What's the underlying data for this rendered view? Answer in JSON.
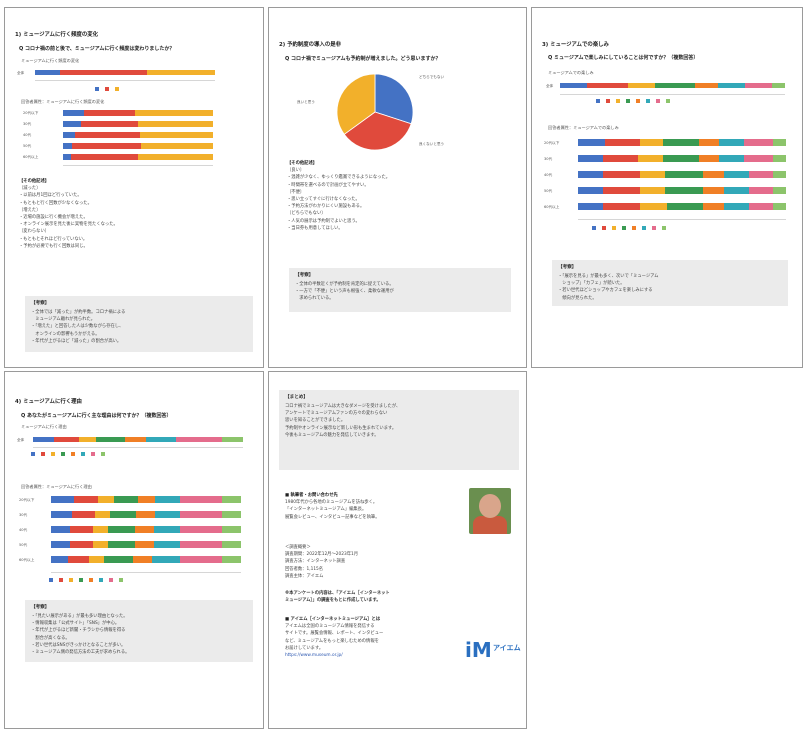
{
  "colors": {
    "blue": "#4472c4",
    "red": "#e04a3c",
    "yellow": "#f2b02b",
    "green": "#3a9a52",
    "orange": "#f07f26",
    "teal": "#32a8b8",
    "pink": "#e46c8c",
    "lightgreen": "#8cc46b",
    "gray": "#a5a5a5",
    "box": "#ebebeb"
  },
  "p1": {
    "section": "1) ミュージアムに行く頻度の変化",
    "question": "Q コロナ禍の前と後で、ミュージアムに行く頻度は変わりましたか？",
    "cap_all": "ミュージアムに行く頻度の変化",
    "cap_age": "回答者属性：ミュージアムに行く頻度の変化",
    "all_label": "全体",
    "ages": [
      "20代以下",
      "30代",
      "40代",
      "50代",
      "60代以上"
    ],
    "heading_other": "【その他記述】",
    "text": [
      "〔減った〕",
      "・以前は月1回ほど行っていた。",
      "・もともと行く回数が少なくなった。",
      "〔増えた〕",
      "・近場の施設に行く機会が増えた。",
      "・オンライン展示を見た後に実物を見たくなった。",
      "〔変わらない〕",
      "・もともとそれほど行っていない。",
      "・予約が必要でも行く回数は同じ。"
    ],
    "box_title": "【考察】",
    "box_text": [
      "・全体では「減った」が約半数。コロナ禍による",
      "　ミュージアム離れが見られた。",
      "・「増えた」と回答した人は少数ながら存在し、",
      "　オンラインの影響もうかがえる。",
      "・年代が上がるほど「減った」の割合が高い。"
    ]
  },
  "p2": {
    "section": "2) 予約制度の導入の是非",
    "question": "Q コロナ禍でミュージアムも予約制が増えました。どう思いますか？",
    "pie_labels": [
      "良いと思う",
      "どちらでもない",
      "良くないと思う"
    ],
    "heading_other": "【その他記述】",
    "text": [
      "〔良い〕",
      "・混雑が少なく、ゆっくり鑑賞できるようになった。",
      "・時間帯を選べるので計画が立てやすい。",
      "〔不便〕",
      "・思い立ってすぐに行けなくなった。",
      "・予約方法がわかりにくい施設もある。",
      "〔どちらでもない〕",
      "・人気の展示は予約制でよいと思う。",
      "・当日券も用意してほしい。"
    ],
    "box_title": "【考察】",
    "box_text": [
      "・全体の半数近くが予約制を肯定的に捉えている。",
      "・一方で「不便」という声も根強く、柔軟な運用が",
      "　求められている。"
    ]
  },
  "p3": {
    "section": "3) ミュージアムでの楽しみ",
    "question": "Q ミュージアムで楽しみにしていることは何ですか？（複数回答）",
    "cap_all": "ミュージアムでの楽しみ",
    "cap_age": "回答者属性：ミュージアムでの楽しみ",
    "all_label": "全体",
    "ages": [
      "20代以下",
      "30代",
      "40代",
      "50代",
      "60代以上"
    ],
    "box_title": "【考察】",
    "box_text": [
      "・「展示を見る」が最も多く、次いで「ミュージアム",
      "　ショップ」「カフェ」が続いた。",
      "・若い世代ほどショップやカフェを楽しみにする",
      "　傾向が見られた。"
    ]
  },
  "p4": {
    "section": "4) ミュージアムに行く理由",
    "question": "Q あなたがミュージアムに行く主な理由は何ですか？（複数回答）",
    "cap_all": "ミュージアムに行く理由",
    "cap_age": "回答者属性：ミュージアムに行く理由",
    "all_label": "全体",
    "ages": [
      "20代以下",
      "30代",
      "40代",
      "50代",
      "60代以上"
    ],
    "box_title": "【考察】",
    "box_text": [
      "・「見たい展示がある」が最も多い理由となった。",
      "・情報収集は「公式サイト」「SNS」が中心。",
      "・年代が上がるほど新聞・チラシから情報を得る",
      "　割合が高くなる。",
      "・若い世代はSNSがきっかけとなることが多い。",
      "・ミュージアム側の発信方法の工夫が求められる。"
    ]
  },
  "p5": {
    "title": "【まとめ】",
    "summary": [
      "コロナ禍でミュージアムは大きなダメージを受けましたが、",
      "アンケートでミュージアムファンの方々の変わらない",
      "思いを知ることができました。",
      "予約制やオンライン展示など新しい形も生まれています。",
      "今後もミュージアムの魅力を発信していきます。"
    ],
    "author_heading": "■ 執筆者・お問い合わせ先",
    "author_text": [
      "1980年代から各地のミュージアムを訪ね歩く。",
      "「インターネットミュージアム」編集長。",
      "展覧会レビュー、インタビュー記事などを執筆。"
    ],
    "survey_heading": "＜調査概要＞",
    "survey": [
      "調査期間：2022年12月～2023年1月",
      "調査方法：インターネット調査",
      "回答者数：1,115名",
      "調査主体：アイエム"
    ],
    "note": [
      "※本アンケートの内容は、「アイエム［インターネット",
      "ミュージアム］」の調査をもとに作成しています。"
    ],
    "site_heading": "■ アイエム［インターネットミュージアム］とは",
    "site_text": [
      "アイエムは全国のミュージアム情報を発信する",
      "サイトです。展覧会情報、レポート、インタビュー",
      "など、ミュージアムをもっと楽しむための情報を",
      "お届けしています。"
    ],
    "url": "https://www.museum.or.jp/",
    "logo_letters": "iM",
    "logo_name": "アイエム"
  },
  "chart_data": [
    {
      "type": "bar",
      "title": "ミュージアムに行く頻度の変化",
      "categories": [
        "全体"
      ],
      "series": [
        {
          "values": [
            14
          ]
        },
        {
          "values": [
            48
          ]
        },
        {
          "values": [
            38
          ]
        }
      ],
      "stacked": true,
      "xlim": [
        0,
        100
      ]
    },
    {
      "type": "bar",
      "title": "回答者属性：ミュージアムに行く頻度の変化",
      "categories": [
        "20代以下",
        "30代",
        "40代",
        "50代",
        "60代以上"
      ],
      "series": [
        {
          "values": [
            14,
            12,
            8,
            6,
            5
          ]
        },
        {
          "values": [
            34,
            38,
            43,
            46,
            45
          ]
        },
        {
          "values": [
            52,
            50,
            49,
            48,
            50
          ]
        }
      ],
      "stacked": true,
      "xlim": [
        0,
        100
      ]
    },
    {
      "type": "pie",
      "labels": [
        "良いと思う",
        "どちらでもない",
        "良くないと思う"
      ],
      "values": [
        30,
        35,
        35
      ]
    },
    {
      "type": "bar",
      "title": "ミュージアムでの楽しみ",
      "categories": [
        "全体"
      ],
      "series": [
        {
          "values": [
            12
          ]
        },
        {
          "values": [
            18
          ]
        },
        {
          "values": [
            12
          ]
        },
        {
          "values": [
            18
          ]
        },
        {
          "values": [
            10
          ]
        },
        {
          "values": [
            12
          ]
        },
        {
          "values": [
            12
          ]
        },
        {
          "values": [
            6
          ]
        }
      ],
      "stacked": true,
      "xlim": [
        0,
        100
      ]
    },
    {
      "type": "bar",
      "title": "回答者属性：ミュージアムでの楽しみ",
      "categories": [
        "20代以下",
        "30代",
        "40代",
        "50代",
        "60代以上"
      ],
      "series": [
        {
          "values": [
            13,
            12,
            12,
            12,
            12
          ]
        },
        {
          "values": [
            17,
            17,
            18,
            18,
            18
          ]
        },
        {
          "values": [
            11,
            12,
            12,
            12,
            13
          ]
        },
        {
          "values": [
            17,
            17,
            18,
            18,
            17
          ]
        },
        {
          "values": [
            10,
            10,
            10,
            10,
            10
          ]
        },
        {
          "values": [
            12,
            12,
            12,
            12,
            12
          ]
        },
        {
          "values": [
            14,
            14,
            12,
            12,
            12
          ]
        },
        {
          "values": [
            6,
            6,
            6,
            6,
            6
          ]
        }
      ],
      "stacked": true,
      "xlim": [
        0,
        100
      ]
    },
    {
      "type": "bar",
      "title": "ミュージアムに行く理由",
      "categories": [
        "全体"
      ],
      "series": [
        {
          "values": [
            10
          ]
        },
        {
          "values": [
            12
          ]
        },
        {
          "values": [
            8
          ]
        },
        {
          "values": [
            14
          ]
        },
        {
          "values": [
            10
          ]
        },
        {
          "values": [
            14
          ]
        },
        {
          "values": [
            22
          ]
        },
        {
          "values": [
            10
          ]
        }
      ],
      "stacked": true,
      "xlim": [
        0,
        100
      ]
    },
    {
      "type": "bar",
      "title": "回答者属性：ミュージアムに行く理由",
      "categories": [
        "20代以下",
        "30代",
        "40代",
        "50代",
        "60代以上"
      ],
      "series": [
        {
          "values": [
            12,
            11,
            10,
            10,
            9
          ]
        },
        {
          "values": [
            13,
            12,
            12,
            12,
            11
          ]
        },
        {
          "values": [
            8,
            8,
            8,
            8,
            8
          ]
        },
        {
          "values": [
            13,
            14,
            14,
            14,
            15
          ]
        },
        {
          "values": [
            9,
            10,
            10,
            10,
            10
          ]
        },
        {
          "values": [
            13,
            13,
            14,
            14,
            15
          ]
        },
        {
          "values": [
            22,
            22,
            22,
            22,
            22
          ]
        },
        {
          "values": [
            10,
            10,
            10,
            10,
            10
          ]
        }
      ],
      "stacked": true,
      "xlim": [
        0,
        100
      ]
    }
  ]
}
